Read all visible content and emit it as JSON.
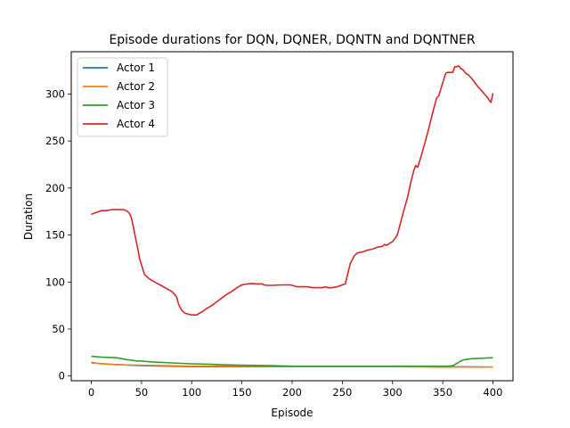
{
  "chart_data": {
    "type": "line",
    "title": "Episode durations for DQN, DQNER, DQNTN and DQNTNER",
    "xlabel": "Episode",
    "ylabel": "Duration",
    "xlim": [
      -20,
      420
    ],
    "ylim": [
      -5,
      345
    ],
    "xticks": [
      0,
      50,
      100,
      150,
      200,
      250,
      300,
      350,
      400
    ],
    "yticks": [
      0,
      50,
      100,
      150,
      200,
      250,
      300
    ],
    "grid": false,
    "legend_position": "upper-left",
    "series": [
      {
        "name": "Actor 1",
        "color": "#1f77b4",
        "points": [
          [
            0,
            14
          ],
          [
            20,
            12.5
          ],
          [
            50,
            11
          ],
          [
            100,
            10
          ],
          [
            150,
            10
          ],
          [
            200,
            10
          ],
          [
            250,
            10
          ],
          [
            300,
            10
          ],
          [
            350,
            10
          ],
          [
            400,
            9.5
          ]
        ]
      },
      {
        "name": "Actor 2",
        "color": "#ff7f0e",
        "points": [
          [
            0,
            14.5
          ],
          [
            10,
            13
          ],
          [
            20,
            12.5
          ],
          [
            25,
            12
          ],
          [
            50,
            11.5
          ],
          [
            75,
            11
          ],
          [
            100,
            10.5
          ],
          [
            150,
            10.5
          ],
          [
            200,
            10
          ],
          [
            250,
            10
          ],
          [
            300,
            10
          ],
          [
            350,
            9.5
          ],
          [
            400,
            9.5
          ]
        ]
      },
      {
        "name": "Actor 3",
        "color": "#2ca02c",
        "points": [
          [
            0,
            21
          ],
          [
            10,
            20
          ],
          [
            25,
            19.5
          ],
          [
            30,
            18.5
          ],
          [
            35,
            17.5
          ],
          [
            40,
            17
          ],
          [
            45,
            16
          ],
          [
            50,
            16
          ],
          [
            60,
            15
          ],
          [
            70,
            14.5
          ],
          [
            80,
            14
          ],
          [
            90,
            13.5
          ],
          [
            100,
            13
          ],
          [
            120,
            12.5
          ],
          [
            130,
            12
          ],
          [
            150,
            11.5
          ],
          [
            180,
            11
          ],
          [
            200,
            10.5
          ],
          [
            220,
            10.5
          ],
          [
            250,
            10.5
          ],
          [
            300,
            10.5
          ],
          [
            330,
            10.5
          ],
          [
            355,
            10.5
          ],
          [
            360,
            11
          ],
          [
            365,
            14
          ],
          [
            368,
            16
          ],
          [
            370,
            17
          ],
          [
            375,
            18
          ],
          [
            380,
            18.5
          ],
          [
            390,
            19
          ],
          [
            400,
            19.5
          ]
        ]
      },
      {
        "name": "Actor 4",
        "color": "#d62728",
        "points": [
          [
            0,
            172
          ],
          [
            5,
            174
          ],
          [
            10,
            176
          ],
          [
            15,
            176
          ],
          [
            20,
            177
          ],
          [
            25,
            177
          ],
          [
            30,
            177
          ],
          [
            32,
            177
          ],
          [
            35,
            176
          ],
          [
            38,
            173
          ],
          [
            40,
            168
          ],
          [
            42,
            158
          ],
          [
            44,
            147
          ],
          [
            46,
            137
          ],
          [
            48,
            125
          ],
          [
            50,
            118
          ],
          [
            53,
            108
          ],
          [
            57,
            104
          ],
          [
            60,
            102
          ],
          [
            65,
            99
          ],
          [
            70,
            96
          ],
          [
            75,
            93
          ],
          [
            80,
            90
          ],
          [
            82,
            88
          ],
          [
            85,
            84
          ],
          [
            87,
            76
          ],
          [
            90,
            70
          ],
          [
            93,
            67
          ],
          [
            96,
            66
          ],
          [
            100,
            65
          ],
          [
            105,
            65
          ],
          [
            108,
            67
          ],
          [
            110,
            68
          ],
          [
            115,
            72
          ],
          [
            120,
            75
          ],
          [
            125,
            79
          ],
          [
            130,
            83
          ],
          [
            135,
            87
          ],
          [
            140,
            90
          ],
          [
            145,
            94
          ],
          [
            150,
            97
          ],
          [
            155,
            98
          ],
          [
            160,
            98.5
          ],
          [
            165,
            98
          ],
          [
            170,
            98
          ],
          [
            172,
            97
          ],
          [
            175,
            96.5
          ],
          [
            180,
            96.5
          ],
          [
            190,
            97
          ],
          [
            198,
            97
          ],
          [
            200,
            96.5
          ],
          [
            205,
            95
          ],
          [
            210,
            95
          ],
          [
            215,
            95
          ],
          [
            220,
            94
          ],
          [
            225,
            94
          ],
          [
            230,
            94
          ],
          [
            233,
            95
          ],
          [
            236,
            94
          ],
          [
            240,
            94
          ],
          [
            245,
            95
          ],
          [
            250,
            97
          ],
          [
            253,
            98
          ],
          [
            255,
            107
          ],
          [
            258,
            120
          ],
          [
            262,
            128
          ],
          [
            265,
            131
          ],
          [
            270,
            132
          ],
          [
            275,
            134
          ],
          [
            280,
            135
          ],
          [
            285,
            137
          ],
          [
            290,
            138
          ],
          [
            292,
            140
          ],
          [
            294,
            139
          ],
          [
            297,
            141
          ],
          [
            300,
            143
          ],
          [
            303,
            147
          ],
          [
            305,
            151
          ],
          [
            308,
            163
          ],
          [
            311,
            175
          ],
          [
            315,
            190
          ],
          [
            318,
            205
          ],
          [
            321,
            218
          ],
          [
            323,
            224
          ],
          [
            325,
            222
          ],
          [
            328,
            232
          ],
          [
            332,
            247
          ],
          [
            336,
            263
          ],
          [
            340,
            280
          ],
          [
            344,
            296
          ],
          [
            346,
            298
          ],
          [
            350,
            312
          ],
          [
            353,
            322
          ],
          [
            355,
            323
          ],
          [
            358,
            323
          ],
          [
            360,
            323
          ],
          [
            362,
            329
          ],
          [
            364,
            329
          ],
          [
            366,
            330
          ],
          [
            368,
            327
          ],
          [
            370,
            326
          ],
          [
            373,
            322
          ],
          [
            376,
            320
          ],
          [
            380,
            315
          ],
          [
            385,
            308
          ],
          [
            390,
            302
          ],
          [
            394,
            297
          ],
          [
            398,
            291
          ],
          [
            400,
            301
          ]
        ]
      }
    ]
  }
}
